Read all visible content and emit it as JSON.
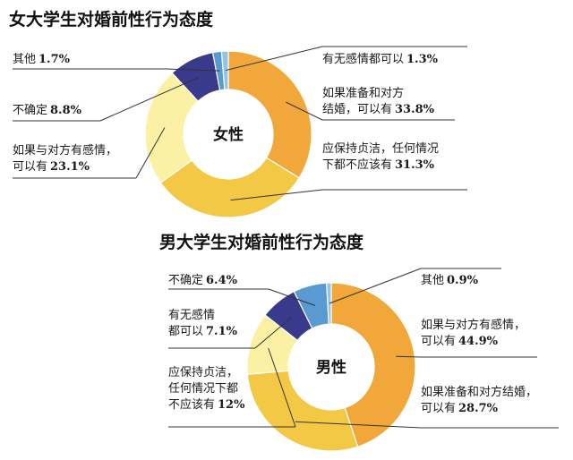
{
  "chart_data": [
    {
      "type": "pie",
      "title": "女大学生对婚前性行为态度",
      "center_label": "女性",
      "colors": [
        "#f1a73a",
        "#f2c845",
        "#fbf1a4",
        "#3a3a8c",
        "#5a9ad2",
        "#8fc6e8"
      ],
      "slices": [
        {
          "label": "如果准备和对方\n结婚，可以有",
          "value": 33.8,
          "text": "33.8%"
        },
        {
          "label": "应保持贞洁，任何情况\n下都不应该有",
          "value": 31.3,
          "text": "31.3%"
        },
        {
          "label": "如果与对方有感情，\n可以有",
          "value": 23.1,
          "text": "23.1%"
        },
        {
          "label": "不确定",
          "value": 8.8,
          "text": "8.8%"
        },
        {
          "label": "其他",
          "value": 1.7,
          "text": "1.7%"
        },
        {
          "label": "有无感情都可以",
          "value": 1.3,
          "text": "1.3%"
        }
      ]
    },
    {
      "type": "pie",
      "title": "男大学生对婚前性行为态度",
      "center_label": "男性",
      "colors": [
        "#f1a73a",
        "#f2c845",
        "#fbf1a4",
        "#3a3a8c",
        "#5a9ad2",
        "#8fc6e8"
      ],
      "slices": [
        {
          "label": "如果与对方有感情，\n可以有",
          "value": 44.9,
          "text": "44.9%"
        },
        {
          "label": "如果准备和对方结婚，\n可以有",
          "value": 28.7,
          "text": "28.7%"
        },
        {
          "label": "应保持贞洁，\n任何情况下都\n不应该有",
          "value": 12,
          "text": "12%"
        },
        {
          "label": "有无感情\n都可以",
          "value": 7.1,
          "text": "7.1%"
        },
        {
          "label": "不确定",
          "value": 6.4,
          "text": "6.4%"
        },
        {
          "label": "其他",
          "value": 0.9,
          "text": "0.9%"
        }
      ]
    }
  ]
}
